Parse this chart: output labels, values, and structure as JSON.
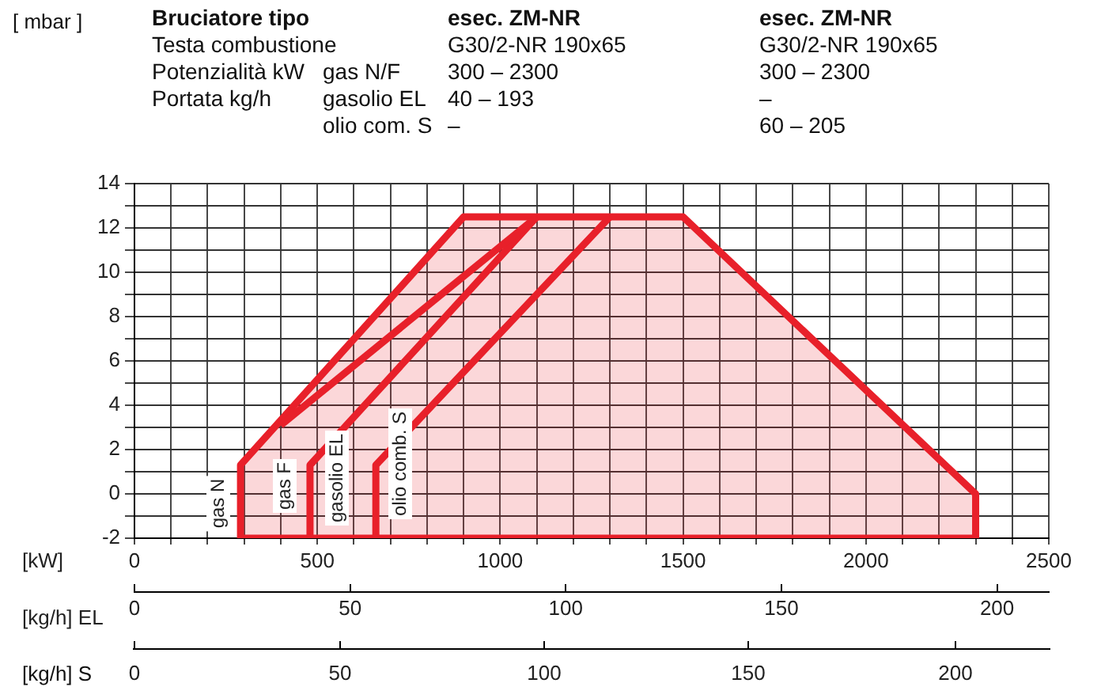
{
  "chart_data": {
    "type": "area",
    "xlabel": "[kW]",
    "x2label": "[kg/h] EL",
    "annotations": [
      "Bruciatore tipo",
      "esec. ZM-NR",
      "esec. ZM-NR",
      "Testa combustione",
      "G30/2-NR 190x65",
      "G30/2-NR 190x65",
      "Potenzialità kW",
      "gas N/F",
      "300 – 2300",
      "300 – 2300",
      "Portata kg/h",
      "gasolio EL",
      "40 – 193",
      "–",
      "olio com. S",
      "–",
      "60 – 205",
      "[ mbar ]",
      "gas N",
      "gas F",
      "gasolio EL",
      "olio comb. S",
      "[kg/h] S",
      "0",
      "50",
      "100",
      "150",
      "200"
    ],
    "series": [
      {
        "color": "#e8202a",
        "x": [
          290,
          290,
          900,
          1500,
          2300,
          2300,
          290
        ],
        "values": [
          -2,
          1.3,
          12.5,
          12.5,
          0,
          -2,
          -2
        ]
      },
      {
        "type": "line",
        "color": "#e8202a",
        "x": [
          480,
          480,
          1100
        ],
        "values": [
          -2,
          1.3,
          12.5
        ]
      },
      {
        "type": "line",
        "color": "#e8202a",
        "x": [
          660,
          660,
          1300
        ],
        "values": [
          -2,
          1.3,
          12.5
        ]
      },
      {
        "type": "line",
        "color": "#e8202a",
        "x": [
          400,
          750,
          1100
        ],
        "values": [
          3.1,
          7.8,
          12.5
        ]
      }
    ],
    "xlim": [
      0,
      2500
    ],
    "xticks": [
      0,
      {
        "value": 100,
        "label": null
      },
      {
        "value": 200,
        "label": null
      },
      {
        "value": 300,
        "label": null
      },
      {
        "value": 400,
        "label": null
      },
      500,
      {
        "value": 600,
        "label": null
      },
      {
        "value": 700,
        "label": null
      },
      {
        "value": 800,
        "label": null
      },
      {
        "value": 900,
        "label": null
      },
      1000,
      {
        "value": 1100,
        "label": null
      },
      {
        "value": 1200,
        "label": null
      },
      {
        "value": 1300,
        "label": null
      },
      {
        "value": 1400,
        "label": null
      },
      1500,
      {
        "value": 1600,
        "label": null
      },
      {
        "value": 1700,
        "label": null
      },
      {
        "value": 1800,
        "label": null
      },
      {
        "value": 1900,
        "label": null
      },
      2000,
      {
        "value": 2100,
        "label": null
      },
      {
        "value": 2200,
        "label": null
      },
      {
        "value": 2300,
        "label": null
      },
      {
        "value": 2400,
        "label": null
      },
      2500
    ],
    "ylim": [
      -2,
      14
    ],
    "yticks": [
      -2,
      {
        "value": -1,
        "label": null
      },
      0,
      {
        "value": 1,
        "label": null
      },
      2,
      {
        "value": 3,
        "label": null
      },
      4,
      {
        "value": 5,
        "label": null
      },
      6,
      {
        "value": 7,
        "label": null
      },
      8,
      {
        "value": 9,
        "label": null
      },
      10,
      {
        "value": 11,
        "label": null
      },
      12,
      {
        "value": 13,
        "label": null
      },
      14
    ],
    "x2lim": [
      0,
      212
    ],
    "x2ticks": [
      0,
      50,
      100,
      150,
      200
    ],
    "grid": true,
    "legend": false,
    "marker": "none",
    "line_style": "solid"
  }
}
